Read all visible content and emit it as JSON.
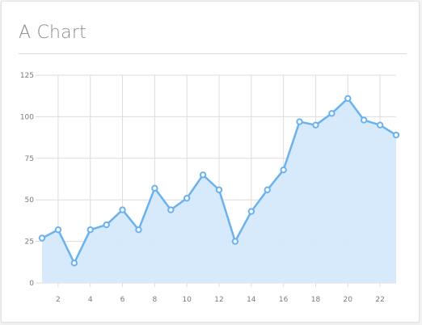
{
  "chart_title": "A Chart",
  "colors": {
    "line": "#6ab2ee",
    "area": "#d5e9fc",
    "point_fill": "#ffffff",
    "grid": "#dddddd",
    "tick_text": "#7a7a7a"
  },
  "chart_data": {
    "type": "area",
    "title": "A Chart",
    "xlabel": "",
    "ylabel": "",
    "x": [
      1,
      2,
      3,
      4,
      5,
      6,
      7,
      8,
      9,
      10,
      11,
      12,
      13,
      14,
      15,
      16,
      17,
      18,
      19,
      20,
      21,
      22,
      23
    ],
    "series": [
      {
        "values": [
          27,
          32,
          12,
          32,
          35,
          44,
          32,
          57,
          44,
          51,
          65,
          56,
          25,
          43,
          56,
          68,
          97,
          95,
          102,
          111,
          98,
          95,
          89
        ]
      }
    ],
    "xlim": [
      1,
      23
    ],
    "ylim": [
      0,
      125
    ],
    "xticks": [
      2,
      4,
      6,
      8,
      10,
      12,
      14,
      16,
      18,
      20,
      22
    ],
    "yticks": [
      0,
      25,
      50,
      75,
      100,
      125
    ],
    "grid": true,
    "legend": "none"
  }
}
